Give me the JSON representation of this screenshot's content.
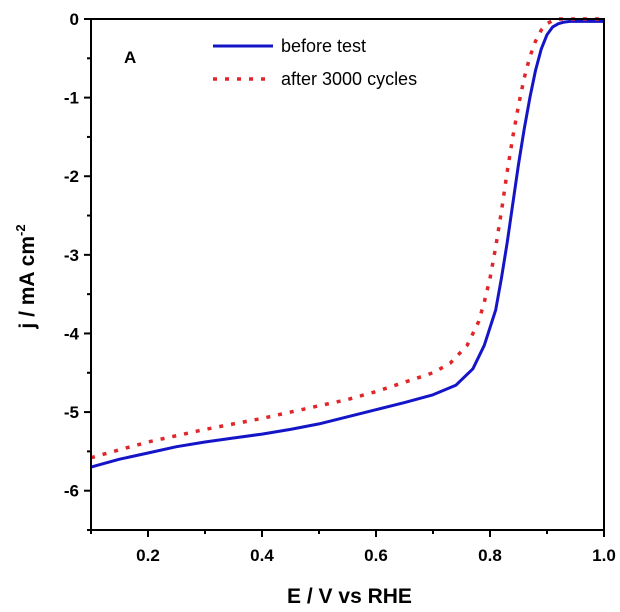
{
  "chart_data": {
    "type": "line",
    "panel_label": "A",
    "xlabel": "E / V vs RHE",
    "ylabel": {
      "main": "j / mA cm",
      "superscript": "-2"
    },
    "xlim": [
      0.1,
      1.0
    ],
    "ylim": [
      -6.5,
      0
    ],
    "x_ticks": [
      0.2,
      0.4,
      0.6,
      0.8,
      1.0
    ],
    "x_tick_labels": [
      "0.2",
      "0.4",
      "0.6",
      "0.8",
      "1.0"
    ],
    "y_ticks": [
      0,
      -1,
      -2,
      -3,
      -4,
      -5,
      -6
    ],
    "y_tick_labels": [
      "0",
      "-1",
      "-2",
      "-3",
      "-4",
      "-5",
      "-6"
    ],
    "grid": false,
    "legend_position": "top-center",
    "series": [
      {
        "name": "before test",
        "style": "solid",
        "color": "#1515c8",
        "x": [
          0.1,
          0.15,
          0.2,
          0.25,
          0.3,
          0.35,
          0.4,
          0.45,
          0.5,
          0.55,
          0.6,
          0.65,
          0.7,
          0.74,
          0.77,
          0.79,
          0.81,
          0.82,
          0.83,
          0.84,
          0.85,
          0.86,
          0.87,
          0.88,
          0.89,
          0.9,
          0.91,
          0.92,
          0.93,
          0.94,
          0.96,
          0.98,
          1.0
        ],
        "values": [
          -5.7,
          -5.6,
          -5.52,
          -5.44,
          -5.38,
          -5.33,
          -5.28,
          -5.22,
          -5.15,
          -5.06,
          -4.97,
          -4.88,
          -4.78,
          -4.66,
          -4.45,
          -4.15,
          -3.7,
          -3.3,
          -2.85,
          -2.35,
          -1.85,
          -1.4,
          -1.0,
          -0.65,
          -0.38,
          -0.2,
          -0.1,
          -0.06,
          -0.04,
          -0.03,
          -0.03,
          -0.03,
          -0.03
        ]
      },
      {
        "name": "after 3000 cycles",
        "style": "dotted",
        "color": "#e0262a",
        "x": [
          0.1,
          0.15,
          0.2,
          0.25,
          0.3,
          0.35,
          0.4,
          0.45,
          0.5,
          0.55,
          0.6,
          0.65,
          0.7,
          0.73,
          0.76,
          0.78,
          0.79,
          0.8,
          0.81,
          0.82,
          0.83,
          0.84,
          0.85,
          0.86,
          0.87,
          0.88,
          0.89,
          0.9,
          0.91,
          0.92,
          0.94,
          0.97,
          1.0
        ],
        "values": [
          -5.58,
          -5.48,
          -5.38,
          -5.3,
          -5.22,
          -5.15,
          -5.08,
          -5.0,
          -4.92,
          -4.84,
          -4.74,
          -4.62,
          -4.5,
          -4.38,
          -4.15,
          -3.85,
          -3.6,
          -3.3,
          -2.9,
          -2.45,
          -1.95,
          -1.5,
          -1.1,
          -0.75,
          -0.48,
          -0.28,
          -0.14,
          -0.06,
          -0.02,
          0.0,
          0.0,
          0.0,
          0.0
        ]
      }
    ]
  }
}
